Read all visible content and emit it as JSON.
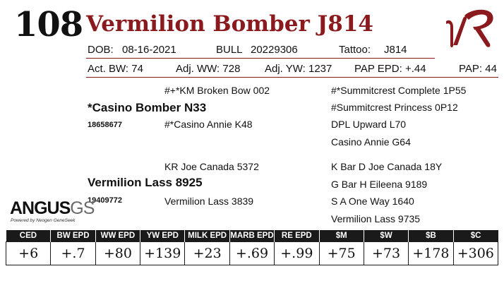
{
  "lot_number": "108",
  "animal_name": "Vermilion Bomber J814",
  "brand_logo_text": "VR",
  "header": {
    "dob_label": "DOB:",
    "dob_value": "08-16-2021",
    "sex": "BULL",
    "reg_number": "20229306",
    "tattoo_label": "Tattoo:",
    "tattoo_value": "J814"
  },
  "stats": {
    "act_bw": "Act. BW: 74",
    "adj_ww": "Adj. WW: 728",
    "adj_yw": "Adj. YW: 1237",
    "pap_epd": "PAP EPD: +.44",
    "pap": "PAP: 44"
  },
  "pedigree": {
    "sire": {
      "name": "*Casino Bomber N33",
      "reg": "18658677"
    },
    "sire_sire": "#+*KM Broken Bow 002",
    "sire_dam": "#*Casino Annie K48",
    "sire_sire_sire": "#*Summitcrest Complete 1P55",
    "sire_sire_dam": "#Summitcrest Princess 0P12",
    "sire_dam_sire": "DPL Upward L70",
    "sire_dam_dam": "Casino Annie G64",
    "dam": {
      "name": "Vermilion Lass 8925",
      "reg": "19409772"
    },
    "dam_sire": "KR Joe Canada 5372",
    "dam_dam": "Vermilion Lass 3839",
    "dam_sire_sire": "K Bar D Joe Canada 18Y",
    "dam_sire_dam": "G Bar H Eileena 9189",
    "dam_dam_sire": "S A One Way 1640",
    "dam_dam_dam": "Vermilion Lass 9735"
  },
  "angus_logo": {
    "main": "ANGUS",
    "suffix": "GS",
    "tagline": "Powered by Neogen GeneSeek"
  },
  "epd_headers": [
    "CED",
    "BW EPD",
    "WW EPD",
    "YW EPD",
    "MILK EPD",
    "MARB EPD",
    "RE EPD",
    "$M",
    "$W",
    "$B",
    "$C"
  ],
  "epd_values": [
    "+6",
    "+.7",
    "+80",
    "+139",
    "+23",
    "+.69",
    "+.99",
    "+75",
    "+73",
    "+178",
    "+306"
  ],
  "colors": {
    "accent": "#8b1a1f",
    "table_header": "#1a1a1a",
    "angus_gs": "#6a6a6a"
  }
}
